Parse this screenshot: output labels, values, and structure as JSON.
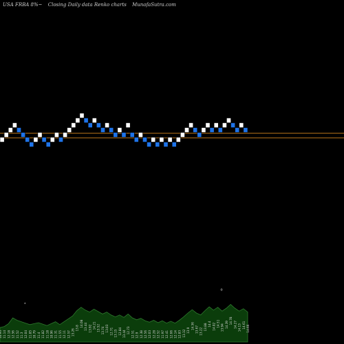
{
  "header": {
    "ticker": "USA FRBA 8%~",
    "description": "Closing Daily data  Renko  charts",
    "site": "MunafaSutra.com"
  },
  "colors": {
    "background": "#000000",
    "up_brick": "#ffffff",
    "down_brick": "#1e73e8",
    "reference_line": "#b8741a",
    "volume_fill": "#0b3d0b",
    "volume_stroke": "#2e7a2e",
    "label": "#d8d8d8"
  },
  "chart_data": {
    "type": "renko",
    "brick_size": 0.3,
    "reference_lines": [
      14.4,
      14.2
    ],
    "bricks": [
      {
        "c": 14.0,
        "dir": "up"
      },
      {
        "c": 14.3,
        "dir": "up"
      },
      {
        "c": 14.6,
        "dir": "up"
      },
      {
        "c": 14.9,
        "dir": "up"
      },
      {
        "c": 14.6,
        "dir": "down"
      },
      {
        "c": 14.3,
        "dir": "down"
      },
      {
        "c": 14.0,
        "dir": "down"
      },
      {
        "c": 13.7,
        "dir": "down"
      },
      {
        "c": 14.0,
        "dir": "up"
      },
      {
        "c": 14.3,
        "dir": "up"
      },
      {
        "c": 14.0,
        "dir": "down"
      },
      {
        "c": 13.7,
        "dir": "down"
      },
      {
        "c": 14.0,
        "dir": "up"
      },
      {
        "c": 14.3,
        "dir": "up"
      },
      {
        "c": 14.0,
        "dir": "down"
      },
      {
        "c": 14.3,
        "dir": "up"
      },
      {
        "c": 14.6,
        "dir": "up"
      },
      {
        "c": 14.9,
        "dir": "up"
      },
      {
        "c": 15.2,
        "dir": "up"
      },
      {
        "c": 15.5,
        "dir": "up"
      },
      {
        "c": 15.2,
        "dir": "down"
      },
      {
        "c": 14.9,
        "dir": "down"
      },
      {
        "c": 15.2,
        "dir": "up"
      },
      {
        "c": 14.9,
        "dir": "down"
      },
      {
        "c": 14.6,
        "dir": "down"
      },
      {
        "c": 14.9,
        "dir": "up"
      },
      {
        "c": 14.6,
        "dir": "down"
      },
      {
        "c": 14.3,
        "dir": "down"
      },
      {
        "c": 14.6,
        "dir": "up"
      },
      {
        "c": 14.3,
        "dir": "down"
      },
      {
        "c": 14.9,
        "dir": "up"
      },
      {
        "c": 14.3,
        "dir": "down"
      },
      {
        "c": 14.0,
        "dir": "down"
      },
      {
        "c": 14.3,
        "dir": "up"
      },
      {
        "c": 14.0,
        "dir": "down"
      },
      {
        "c": 13.7,
        "dir": "down"
      },
      {
        "c": 14.0,
        "dir": "up"
      },
      {
        "c": 13.7,
        "dir": "down"
      },
      {
        "c": 14.0,
        "dir": "up"
      },
      {
        "c": 13.7,
        "dir": "down"
      },
      {
        "c": 14.0,
        "dir": "up"
      },
      {
        "c": 13.7,
        "dir": "down"
      },
      {
        "c": 14.0,
        "dir": "up"
      },
      {
        "c": 14.3,
        "dir": "up"
      },
      {
        "c": 14.6,
        "dir": "up"
      },
      {
        "c": 14.9,
        "dir": "up"
      },
      {
        "c": 14.6,
        "dir": "down"
      },
      {
        "c": 14.3,
        "dir": "down"
      },
      {
        "c": 14.6,
        "dir": "up"
      },
      {
        "c": 14.9,
        "dir": "up"
      },
      {
        "c": 14.6,
        "dir": "down"
      },
      {
        "c": 14.9,
        "dir": "up"
      },
      {
        "c": 14.6,
        "dir": "down"
      },
      {
        "c": 14.9,
        "dir": "up"
      },
      {
        "c": 15.2,
        "dir": "up"
      },
      {
        "c": 14.9,
        "dir": "down"
      },
      {
        "c": 14.6,
        "dir": "down"
      },
      {
        "c": 14.9,
        "dir": "up"
      },
      {
        "c": 14.6,
        "dir": "down"
      }
    ],
    "volume": [
      3,
      3.2,
      3.8,
      5,
      4.5,
      4.2,
      3.9,
      3.6,
      3.8,
      4,
      3.7,
      3.4,
      3.8,
      4.2,
      3.6,
      4.2,
      4.8,
      5.4,
      6.5,
      7.2,
      6.6,
      6.2,
      6.8,
      6.3,
      5.8,
      6.2,
      5.6,
      5.2,
      5.6,
      5.1,
      5.8,
      5.0,
      4.6,
      4.9,
      4.4,
      4.1,
      4.5,
      4.0,
      4.4,
      3.9,
      4.3,
      3.9,
      4.5,
      5.2,
      6.0,
      6.7,
      6.0,
      5.6,
      6.5,
      7.3,
      6.6,
      7.2,
      6.4,
      7.0,
      7.8,
      7.0,
      6.4,
      6.9,
      6.2
    ],
    "volume_max": 10,
    "volume_labels": [
      "10.93",
      "11.14",
      "12.18",
      "12.56",
      "11.52",
      "11.3",
      "12.04",
      "11.85",
      "10.79",
      "11.4",
      "11.82",
      "11.18",
      "10.96",
      "11.31",
      "11.55",
      "12.11",
      "12.57",
      "13.26",
      "13.8",
      "14.08",
      "13.44",
      "13.92",
      "14.21",
      "13.52",
      "13.74",
      "13.03",
      "12.71",
      "13.15",
      "12.84",
      "13.44",
      "12.73",
      "12.51",
      "12.9",
      "12.38",
      "12.56",
      "12.03",
      "12.28",
      "12.52",
      "11.97",
      "12.41",
      "12.66",
      "12.14",
      "12.83",
      "13.32",
      "13.9",
      "14.36",
      "13.67",
      "13.22",
      "13.88",
      "14.4",
      "14.02",
      "14.51",
      "13.94",
      "14.39",
      "14.78",
      "14.27",
      "14.13",
      "14.61",
      "14.66"
    ],
    "volume_markers": [
      {
        "index": 5,
        "symbol": "*"
      },
      {
        "index": 51,
        "symbol": "o"
      }
    ]
  }
}
